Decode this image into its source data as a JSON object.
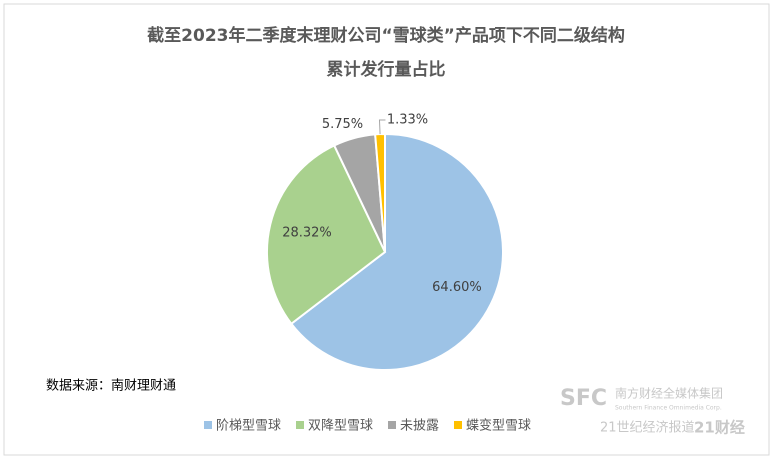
{
  "chart_data": {
    "type": "pie",
    "title": [
      "截至2023年二季度末理财公司“雪球类”产品项下不同二级结构",
      "累计发行量占比"
    ],
    "categories": [
      "阶梯型雪球",
      "双降型雪球",
      "未披露",
      "蝶变型雪球"
    ],
    "values": [
      64.6,
      28.32,
      5.75,
      1.33
    ],
    "value_labels": [
      "64.60%",
      "28.32%",
      "5.75%",
      "1.33%"
    ],
    "colors": [
      "#9dc3e6",
      "#a9d18e",
      "#a5a5a5",
      "#ffc000"
    ],
    "legend": "bottom",
    "source": "数据来源：南财理财通",
    "watermark": [
      "SFC",
      "南方财经全媒体集团",
      "Southern Finance Omnimedia Corp.",
      "21世纪经济报道",
      "21财经"
    ]
  }
}
